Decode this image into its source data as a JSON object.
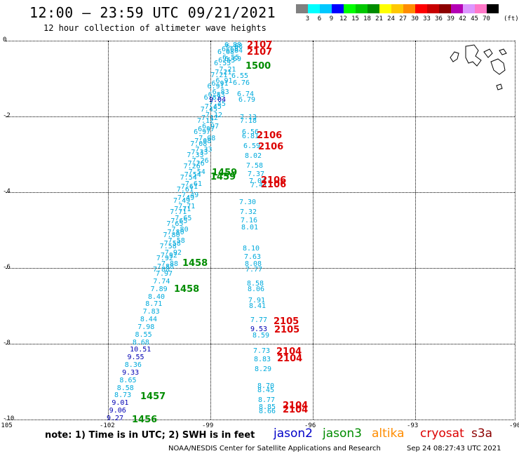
{
  "header": {
    "title": "12:00 – 23:59 UTC 09/21/2021",
    "subtitle": "12 hour collection of altimeter wave heights"
  },
  "colorbar": {
    "unit": "(ft)",
    "bins": [
      {
        "color": "#808080",
        "label": "3"
      },
      {
        "color": "#00ffff",
        "label": "6"
      },
      {
        "color": "#00c8ff",
        "label": "9"
      },
      {
        "color": "#0000ff",
        "label": "12"
      },
      {
        "color": "#00ff00",
        "label": "15"
      },
      {
        "color": "#00c800",
        "label": "18"
      },
      {
        "color": "#008c00",
        "label": "21"
      },
      {
        "color": "#ffff00",
        "label": "24"
      },
      {
        "color": "#ffc800",
        "label": "27"
      },
      {
        "color": "#ff8c00",
        "label": "30"
      },
      {
        "color": "#ff0000",
        "label": "33"
      },
      {
        "color": "#c80000",
        "label": "36"
      },
      {
        "color": "#8c0000",
        "label": "39"
      },
      {
        "color": "#b400b4",
        "label": "42"
      },
      {
        "color": "#dc96ff",
        "label": "45"
      },
      {
        "color": "#ff78c8",
        "label": "70"
      },
      {
        "color": "#000000",
        "label": ""
      }
    ]
  },
  "axes": {
    "y_labels": [
      "0",
      "-2",
      "-4",
      "-6",
      "-8",
      "-10"
    ],
    "x_labels": [
      "-105",
      "-102",
      "-99",
      "-96",
      "-93",
      "-90"
    ]
  },
  "colors": {
    "jason2": "#0000c8",
    "jason3": "#008c00",
    "altika": "#ff8c00",
    "cryosat": "#dc0000",
    "s3a": "#8c0000",
    "light": "#00aadc",
    "dark": "#0000b4"
  },
  "map": {
    "land_label": "Galapagos",
    "passes": [
      {
        "label": "2107",
        "sat": "cryosat"
      },
      {
        "label": "2107",
        "sat": "cryosat"
      },
      {
        "label": "1500",
        "sat": "jason3"
      },
      {
        "label": "2106",
        "sat": "cryosat"
      },
      {
        "label": "2106",
        "sat": "cryosat"
      },
      {
        "label": "1459",
        "sat": "jason3"
      },
      {
        "label": "1459",
        "sat": "jason3"
      },
      {
        "label": "2106",
        "sat": "cryosat"
      },
      {
        "label": "2106",
        "sat": "cryosat"
      },
      {
        "label": "1458",
        "sat": "jason3"
      },
      {
        "label": "1458",
        "sat": "jason3"
      },
      {
        "label": "2105",
        "sat": "cryosat"
      },
      {
        "label": "2105",
        "sat": "cryosat"
      },
      {
        "label": "2104",
        "sat": "cryosat"
      },
      {
        "label": "2104",
        "sat": "cryosat"
      },
      {
        "label": "2104",
        "sat": "cryosat"
      },
      {
        "label": "2104",
        "sat": "cryosat"
      },
      {
        "label": "1457",
        "sat": "jason3"
      },
      {
        "label": "1456",
        "sat": "jason3"
      }
    ],
    "track_left_values": [
      "7.97",
      "7.74",
      "7.89",
      "8.40",
      "8.71",
      "7.83",
      "8.44",
      "7.98",
      "8.55",
      "8.68",
      "10.51",
      "9.55",
      "8.36",
      "9.33",
      "8.65",
      "8.58",
      "8.73",
      "9.01",
      "9.06",
      "9.27"
    ],
    "track_left_dark": [
      "9.04",
      "10.51",
      "9.55",
      "9.33",
      "9.01",
      "9.06",
      "9.27"
    ],
    "track_right_values": [
      "6.88",
      "6.84",
      "6.69",
      "6.55",
      "6.76",
      "6.74",
      "6.79",
      "7.13",
      "7.18",
      "6.56",
      "6.81",
      "6.59",
      "8.02",
      "7.58",
      "7.37",
      "7.04",
      "7.41",
      "7.30",
      "7.32",
      "7.16",
      "8.01",
      "8.10",
      "7.63",
      "8.08",
      "7.77",
      "8.58",
      "8.06",
      "7.91",
      "8.41",
      "7.77",
      "8.59",
      "7.73",
      "8.83",
      "8.29",
      "8.70",
      "8.45",
      "8.77",
      "8.85",
      "8.66"
    ],
    "track_right_dark": [
      "9.53"
    ],
    "blur_left_values": [
      "6.68",
      "6.55",
      "7.21",
      "6.91",
      "6.83",
      "7.45",
      "7.12",
      "6.97",
      "7.08",
      "7.33",
      "7.26",
      "7.54",
      "7.61",
      "7.49",
      "7.71",
      "7.65",
      "7.80",
      "7.58",
      "7.92",
      "7.88"
    ]
  },
  "footer": {
    "note": "note:  1) Time is in UTC;  2) SWH is in feet",
    "satellites": [
      {
        "name": "jason2",
        "key": "jason2"
      },
      {
        "name": "jason3",
        "key": "jason3"
      },
      {
        "name": "altika",
        "key": "altika"
      },
      {
        "name": "cryosat",
        "key": "cryosat"
      },
      {
        "name": "s3a",
        "key": "s3a"
      }
    ],
    "credit": "NOAA/NESDIS Center for Satellite Applications and Research",
    "timestamp": "Sep 24 08:27:43 UTC 2021"
  }
}
